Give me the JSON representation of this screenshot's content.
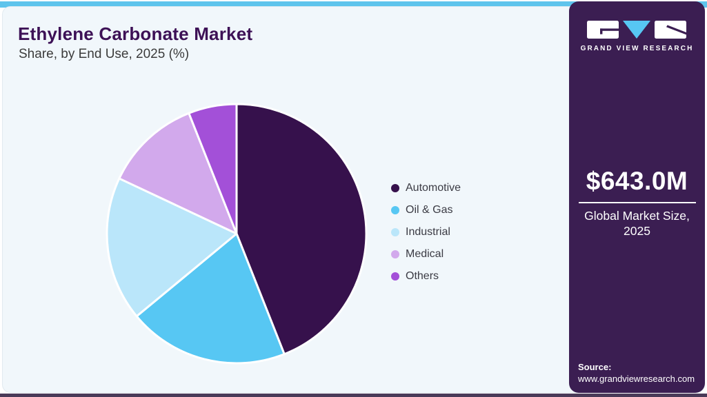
{
  "header": {
    "title": "Ethylene Carbonate Market",
    "subtitle": "Share, by End Use, 2025 (%)"
  },
  "chart_data": {
    "type": "pie",
    "title": "Ethylene Carbonate Market Share, by End Use, 2025 (%)",
    "unit": "%",
    "start_angle_deg": 0,
    "direction": "clockwise",
    "legend_position": "right",
    "slices": [
      {
        "label": "Automotive",
        "value": 44,
        "color": "#36114C"
      },
      {
        "label": "Oil & Gas",
        "value": 20,
        "color": "#57C7F3"
      },
      {
        "label": "Industrial",
        "value": 18,
        "color": "#BAE6FA"
      },
      {
        "label": "Medical",
        "value": 12,
        "color": "#D2A9EC"
      },
      {
        "label": "Others",
        "value": 6,
        "color": "#A350D8"
      }
    ]
  },
  "sidebar": {
    "brand": "GRAND VIEW RESEARCH",
    "market_size_value": "$643.0M",
    "market_size_label": "Global Market Size, 2025",
    "source_label": "Source:",
    "source_url": "www.grandviewresearch.com",
    "background_color": "#3B1E52",
    "logo_triangle_color": "#57C7F3"
  },
  "theme": {
    "top_bar_color": "#5EC4EC",
    "panel_background": "#F1F7FB",
    "title_color": "#3D1156",
    "body_text_color": "#3B3B3B"
  }
}
